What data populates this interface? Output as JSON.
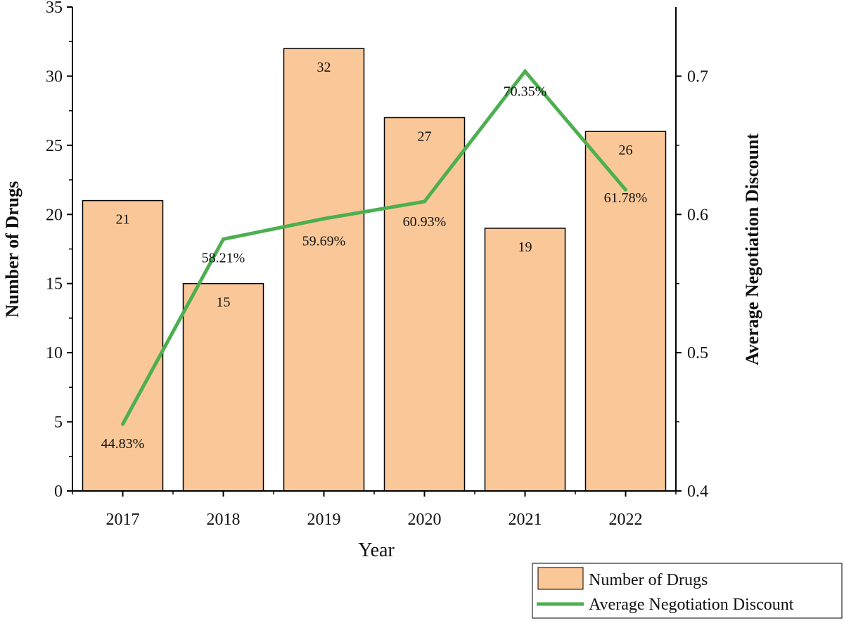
{
  "chart_data": {
    "type": "bar",
    "categories": [
      "2017",
      "2018",
      "2019",
      "2020",
      "2021",
      "2022"
    ],
    "series": [
      {
        "name": "Number of Drugs",
        "type": "bar",
        "axis": "left",
        "values": [
          21,
          15,
          32,
          27,
          19,
          26
        ],
        "labels": [
          "21",
          "15",
          "32",
          "27",
          "19",
          "26"
        ]
      },
      {
        "name": "Average Negotiation Discount",
        "type": "line",
        "axis": "right",
        "values": [
          0.4483,
          0.5821,
          0.5969,
          0.6093,
          0.7035,
          0.6178
        ],
        "labels": [
          "44.83%",
          "58.21%",
          "59.69%",
          "60.93%",
          "70.35%",
          "61.78%"
        ]
      }
    ],
    "xlabel": "Year",
    "ylabel": "Number of Drugs",
    "y2label": "Average Negotiation Discount",
    "ylim": [
      0,
      35
    ],
    "yticks": [
      0,
      5,
      10,
      15,
      20,
      25,
      30,
      35
    ],
    "y2lim": [
      0.4,
      0.75
    ],
    "y2ticks": [
      0.4,
      0.5,
      0.6,
      0.7
    ],
    "y2tick_labels": [
      "0.4",
      "0.5",
      "0.6",
      "0.7"
    ],
    "grid": false,
    "legend": "bottom-right",
    "colors": {
      "bar_fill": "#fac898",
      "bar_stroke": "#000000",
      "line": "#4caf50"
    }
  }
}
